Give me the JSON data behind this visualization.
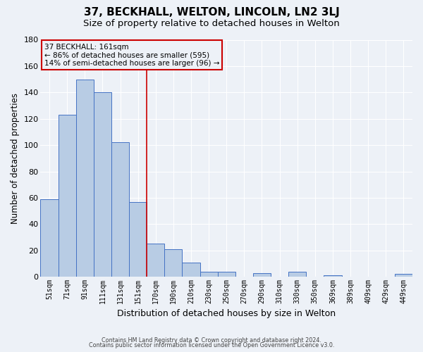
{
  "title": "37, BECKHALL, WELTON, LINCOLN, LN2 3LJ",
  "subtitle": "Size of property relative to detached houses in Welton",
  "xlabel": "Distribution of detached houses by size in Welton",
  "ylabel": "Number of detached properties",
  "bar_labels": [
    "51sqm",
    "71sqm",
    "91sqm",
    "111sqm",
    "131sqm",
    "151sqm",
    "170sqm",
    "190sqm",
    "210sqm",
    "230sqm",
    "250sqm",
    "270sqm",
    "290sqm",
    "310sqm",
    "330sqm",
    "350sqm",
    "369sqm",
    "389sqm",
    "409sqm",
    "429sqm",
    "449sqm"
  ],
  "bar_values": [
    59,
    123,
    150,
    140,
    102,
    57,
    25,
    21,
    11,
    4,
    4,
    0,
    3,
    0,
    4,
    0,
    1,
    0,
    0,
    0,
    2
  ],
  "bar_color": "#b8cce4",
  "bar_edge_color": "#4472c4",
  "vline_x": 5.5,
  "vline_color": "#cc0000",
  "annotation_title": "37 BECKHALL: 161sqm",
  "annotation_line1": "← 86% of detached houses are smaller (595)",
  "annotation_line2": "14% of semi-detached houses are larger (96) →",
  "annotation_box_color": "#cc0000",
  "ylim": [
    0,
    180
  ],
  "yticks": [
    0,
    20,
    40,
    60,
    80,
    100,
    120,
    140,
    160,
    180
  ],
  "footer1": "Contains HM Land Registry data © Crown copyright and database right 2024.",
  "footer2": "Contains public sector information licensed under the Open Government Licence v3.0.",
  "bg_color": "#edf1f7",
  "grid_color": "#ffffff",
  "title_fontsize": 11,
  "subtitle_fontsize": 9.5
}
